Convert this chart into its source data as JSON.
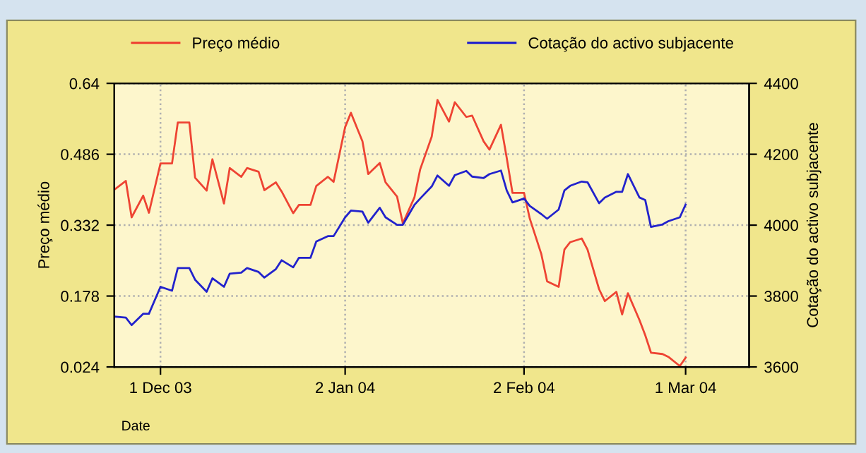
{
  "chart_data": {
    "type": "line",
    "x": [
      "2003-11-23",
      "2003-11-25",
      "2003-11-26",
      "2003-11-28",
      "2003-11-29",
      "2003-12-01",
      "2003-12-03",
      "2003-12-04",
      "2003-12-06",
      "2003-12-07",
      "2003-12-09",
      "2003-12-10",
      "2003-12-12",
      "2003-12-13",
      "2003-12-15",
      "2003-12-16",
      "2003-12-18",
      "2003-12-19",
      "2003-12-21",
      "2003-12-22",
      "2003-12-24",
      "2003-12-25",
      "2003-12-27",
      "2003-12-28",
      "2003-12-30",
      "2003-12-31",
      "2004-01-02",
      "2004-01-03",
      "2004-01-05",
      "2004-01-06",
      "2004-01-08",
      "2004-01-09",
      "2004-01-11",
      "2004-01-12",
      "2004-01-14",
      "2004-01-15",
      "2004-01-17",
      "2004-01-18",
      "2004-01-20",
      "2004-01-21",
      "2004-01-23",
      "2004-01-24",
      "2004-01-26",
      "2004-01-27",
      "2004-01-29",
      "2004-01-30",
      "2004-01-31",
      "2004-02-02",
      "2004-02-03",
      "2004-02-05",
      "2004-02-06",
      "2004-02-08",
      "2004-02-09",
      "2004-02-10",
      "2004-02-12",
      "2004-02-13",
      "2004-02-15",
      "2004-02-16",
      "2004-02-18",
      "2004-02-19",
      "2004-02-20",
      "2004-02-22",
      "2004-02-23",
      "2004-02-24",
      "2004-02-26",
      "2004-02-27",
      "2004-02-29",
      "2004-03-01"
    ],
    "series": [
      {
        "name": "Preço médio",
        "color": "#ee4433",
        "values": [
          0.409,
          0.428,
          0.349,
          0.396,
          0.359,
          0.466,
          0.466,
          0.555,
          0.555,
          0.435,
          0.407,
          0.475,
          0.379,
          0.456,
          0.437,
          0.456,
          0.448,
          0.408,
          0.425,
          0.405,
          0.358,
          0.376,
          0.376,
          0.417,
          0.437,
          0.426,
          0.545,
          0.576,
          0.514,
          0.443,
          0.467,
          0.425,
          0.394,
          0.336,
          0.392,
          0.453,
          0.524,
          0.604,
          0.557,
          0.599,
          0.567,
          0.57,
          0.514,
          0.496,
          0.55,
          0.478,
          0.402,
          0.402,
          0.346,
          0.269,
          0.21,
          0.198,
          0.279,
          0.295,
          0.303,
          0.279,
          0.193,
          0.167,
          0.187,
          0.138,
          0.184,
          0.126,
          0.093,
          0.055,
          0.052,
          0.046,
          0.026,
          0.044
        ]
      },
      {
        "name": "Cotação do activo subjacente",
        "color": "#2222cc",
        "axis": "y2",
        "values": [
          3742,
          3739,
          3718,
          3750,
          3750,
          3826,
          3815,
          3879,
          3879,
          3846,
          3812,
          3850,
          3826,
          3863,
          3866,
          3879,
          3868,
          3852,
          3876,
          3901,
          3881,
          3908,
          3908,
          3954,
          3969,
          3969,
          4022,
          4041,
          4038,
          4007,
          4049,
          4022,
          4001,
          4001,
          4057,
          4075,
          4109,
          4140,
          4111,
          4141,
          4153,
          4137,
          4133,
          4144,
          4154,
          4098,
          4064,
          4075,
          4054,
          4031,
          4018,
          4044,
          4098,
          4111,
          4123,
          4121,
          4062,
          4078,
          4094,
          4094,
          4144,
          4078,
          4071,
          3995,
          4002,
          4011,
          4022,
          4058
        ]
      }
    ],
    "ylabel": "Preço médio",
    "y2label": "Cotação do activo subjacente",
    "xlim": [
      "2003-11-23",
      "2004-03-12"
    ],
    "xticks": [
      {
        "value": "2003-12-01",
        "label": "1 Dec 03"
      },
      {
        "value": "2004-01-02",
        "label": "2 Jan 04"
      },
      {
        "value": "2004-02-02",
        "label": "2 Feb 04"
      },
      {
        "value": "2004-03-01",
        "label": "1 Mar 04"
      }
    ],
    "ylim": [
      0.024,
      0.64
    ],
    "yticks": [
      0.024,
      0.178,
      0.332,
      0.486,
      0.64
    ],
    "y2lim": [
      3600,
      4400
    ],
    "y2ticks": [
      3600,
      3800,
      4000,
      4200,
      4400
    ],
    "annotations": [
      "Date"
    ],
    "grid": true,
    "legend": "top",
    "marker": "none",
    "line_style": "solid"
  }
}
